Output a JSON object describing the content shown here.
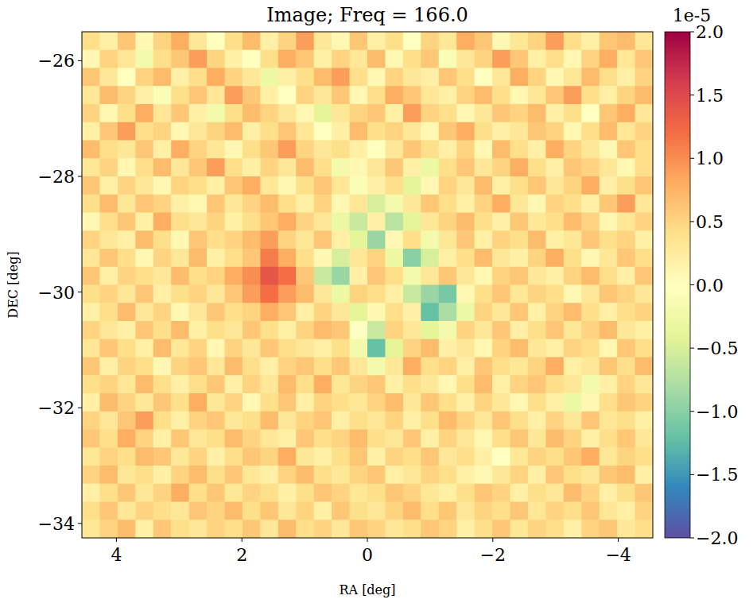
{
  "chart_data": {
    "type": "heatmap",
    "title": "Image; Freq = 166.0",
    "x_label": "RA [deg]",
    "y_label": "DEC [deg]",
    "xlim": [
      4.55,
      -4.55
    ],
    "ylim": [
      -34.25,
      -25.5
    ],
    "xticks": [
      4,
      2,
      0,
      {
        "value": -2,
        "label": "−2"
      },
      {
        "value": -4,
        "label": "−4"
      }
    ],
    "yticks": [
      {
        "value": -26,
        "label": "−26"
      },
      {
        "value": -28,
        "label": "−28"
      },
      {
        "value": -30,
        "label": "−30"
      },
      {
        "value": -32,
        "label": "−32"
      },
      {
        "value": -34,
        "label": "−34"
      }
    ],
    "colorbar": {
      "range": [
        -2,
        2
      ],
      "offset_label": "1e-5",
      "ticks": [
        {
          "value": -2,
          "label": "−2.0"
        },
        {
          "value": -1.5,
          "label": "−1.5"
        },
        {
          "value": -1,
          "label": "−1.0"
        },
        {
          "value": -0.5,
          "label": "−0.5"
        },
        {
          "value": 0,
          "label": "0.0"
        },
        {
          "value": 0.5,
          "label": "0.5"
        },
        {
          "value": 1,
          "label": "1.0"
        },
        {
          "value": 1.5,
          "label": "1.5"
        },
        {
          "value": 2,
          "label": "2.0"
        }
      ]
    },
    "cells": [
      [
        0.4,
        0.2,
        0.6,
        0.1,
        0.5,
        0.8,
        0.3,
        0.0,
        0.4,
        0.7,
        0.2,
        0.5,
        0.9,
        0.3,
        0.1,
        0.6,
        0.2,
        0.4,
        0.0,
        0.5,
        0.3,
        0.8,
        0.6,
        0.1,
        0.3,
        0.5,
        0.9,
        0.4,
        0.2,
        0.6,
        0.7,
        0.3
      ],
      [
        0.1,
        0.5,
        0.3,
        -0.2,
        0.4,
        0.6,
        0.9,
        0.5,
        0.2,
        0.0,
        0.4,
        0.8,
        0.6,
        0.2,
        0.5,
        0.3,
        0.7,
        0.1,
        0.4,
        0.6,
        -0.1,
        0.3,
        0.5,
        0.9,
        0.6,
        0.2,
        0.4,
        0.1,
        0.5,
        0.8,
        0.3,
        0.6
      ],
      [
        0.6,
        0.3,
        0.0,
        0.5,
        0.7,
        0.2,
        0.4,
        0.8,
        0.5,
        0.3,
        -0.3,
        0.2,
        0.4,
        0.7,
        0.9,
        0.4,
        0.1,
        0.5,
        0.3,
        0.2,
        0.6,
        0.4,
        0.0,
        0.3,
        0.8,
        0.5,
        0.1,
        0.3,
        0.7,
        0.4,
        0.2,
        0.5
      ],
      [
        0.3,
        0.7,
        0.5,
        0.2,
        -0.1,
        0.4,
        0.6,
        0.3,
        0.9,
        0.6,
        0.2,
        0.0,
        0.5,
        0.3,
        0.6,
        0.1,
        0.4,
        0.8,
        0.6,
        0.3,
        0.2,
        0.5,
        0.7,
        0.4,
        0.1,
        0.3,
        0.6,
        0.9,
        0.4,
        0.2,
        0.5,
        0.7
      ],
      [
        0.5,
        0.1,
        0.4,
        0.8,
        0.3,
        0.6,
        0.2,
        -0.2,
        0.4,
        0.7,
        0.5,
        0.3,
        0.1,
        -0.4,
        0.3,
        0.5,
        0.6,
        0.2,
        0.9,
        0.5,
        0.4,
        0.1,
        0.3,
        0.6,
        0.5,
        0.7,
        0.2,
        0.4,
        0.0,
        0.6,
        0.8,
        0.3
      ],
      [
        0.2,
        0.6,
        0.9,
        0.4,
        0.5,
        0.1,
        0.3,
        0.5,
        0.7,
        0.2,
        0.4,
        0.6,
        0.3,
        0.0,
        0.2,
        0.7,
        0.4,
        0.5,
        0.3,
        0.1,
        0.6,
        0.8,
        0.4,
        0.2,
        0.3,
        0.6,
        0.5,
        0.1,
        0.4,
        0.7,
        0.3,
        0.5
      ],
      [
        0.7,
        0.4,
        0.3,
        0.6,
        0.2,
        0.8,
        0.5,
        0.3,
        0.1,
        0.4,
        0.6,
        0.9,
        0.5,
        0.3,
        0.4,
        0.2,
        0.0,
        0.3,
        0.6,
        0.4,
        0.2,
        0.5,
        0.1,
        0.7,
        0.4,
        0.2,
        0.8,
        0.5,
        0.3,
        0.1,
        0.6,
        0.4
      ],
      [
        0.3,
        0.5,
        0.1,
        0.4,
        0.7,
        0.3,
        0.6,
        0.9,
        0.4,
        0.2,
        0.5,
        0.3,
        0.7,
        0.4,
        -0.2,
        0.1,
        0.3,
        0.6,
        0.2,
        -0.3,
        0.4,
        0.6,
        0.3,
        0.5,
        0.8,
        0.4,
        0.2,
        0.6,
        0.5,
        0.3,
        0.1,
        0.4
      ],
      [
        0.6,
        0.2,
        0.5,
        0.3,
        0.1,
        0.5,
        0.4,
        0.2,
        0.6,
        0.8,
        0.3,
        0.1,
        0.4,
        0.6,
        0.3,
        -0.1,
        0.2,
        0.4,
        -0.4,
        0.1,
        0.5,
        0.3,
        0.7,
        0.2,
        0.4,
        0.6,
        0.3,
        0.5,
        0.8,
        0.2,
        0.4,
        0.6
      ],
      [
        0.4,
        0.7,
        0.3,
        0.6,
        0.5,
        0.2,
        0.1,
        0.6,
        0.3,
        0.5,
        0.7,
        0.4,
        0.2,
        0.5,
        0.1,
        0.3,
        -0.5,
        -0.2,
        0.3,
        0.6,
        0.4,
        0.2,
        0.5,
        0.8,
        0.3,
        0.1,
        0.5,
        0.4,
        0.2,
        0.6,
        0.9,
        0.3
      ],
      [
        0.1,
        0.4,
        0.6,
        0.2,
        0.8,
        0.4,
        0.3,
        0.5,
        0.2,
        0.4,
        0.6,
        0.8,
        0.5,
        0.3,
        -0.3,
        -0.6,
        0.2,
        -0.7,
        -0.4,
        0.3,
        0.5,
        0.7,
        0.4,
        0.2,
        0.6,
        0.3,
        0.4,
        0.7,
        0.5,
        0.1,
        0.3,
        0.5
      ],
      [
        0.5,
        0.3,
        0.2,
        0.7,
        0.4,
        0.1,
        0.6,
        0.4,
        0.5,
        0.7,
        0.9,
        0.5,
        0.3,
        0.6,
        0.2,
        -0.4,
        -0.9,
        0.1,
        0.4,
        -0.2,
        0.3,
        0.6,
        0.2,
        0.5,
        0.4,
        0.7,
        0.2,
        0.3,
        0.6,
        0.4,
        0.5,
        0.2
      ],
      [
        0.3,
        0.6,
        0.4,
        0.1,
        0.5,
        0.3,
        0.7,
        0.2,
        0.4,
        0.6,
        1.1,
        0.8,
        0.4,
        0.1,
        -0.5,
        0.3,
        0.5,
        -0.3,
        -1.0,
        -0.5,
        0.2,
        0.4,
        0.7,
        0.3,
        0.2,
        0.5,
        0.8,
        0.4,
        0.1,
        0.3,
        0.6,
        0.4
      ],
      [
        0.6,
        0.2,
        0.5,
        0.4,
        0.3,
        0.7,
        0.4,
        0.5,
        0.8,
        1.0,
        1.4,
        1.2,
        0.6,
        -0.6,
        -0.9,
        0.2,
        0.6,
        0.4,
        -0.2,
        0.3,
        0.6,
        0.3,
        0.1,
        0.5,
        0.6,
        0.3,
        0.2,
        0.5,
        0.7,
        0.4,
        0.2,
        0.6
      ],
      [
        0.4,
        0.5,
        0.3,
        0.6,
        0.2,
        0.4,
        0.5,
        0.3,
        0.6,
        0.9,
        1.2,
        0.9,
        0.7,
        0.3,
        -0.3,
        0.5,
        0.4,
        0.2,
        -0.6,
        -0.9,
        -1.1,
        0.1,
        0.4,
        0.6,
        0.3,
        0.5,
        0.4,
        0.1,
        0.3,
        0.6,
        0.5,
        0.3
      ],
      [
        0.2,
        0.4,
        0.7,
        0.3,
        0.5,
        0.1,
        0.3,
        0.6,
        0.4,
        0.5,
        0.8,
        0.6,
        0.2,
        0.5,
        0.3,
        -0.4,
        0.1,
        0.4,
        0.2,
        -1.2,
        -0.8,
        -0.3,
        0.5,
        0.3,
        0.6,
        0.2,
        0.5,
        0.7,
        0.4,
        0.2,
        0.4,
        0.5
      ],
      [
        0.5,
        0.3,
        0.2,
        0.6,
        0.4,
        0.7,
        0.2,
        0.4,
        0.3,
        0.6,
        0.4,
        0.2,
        0.5,
        0.7,
        0.6,
        0.0,
        -0.6,
        0.5,
        0.3,
        -0.4,
        -0.2,
        0.5,
        0.3,
        0.6,
        0.2,
        0.4,
        0.6,
        0.3,
        0.5,
        0.7,
        0.3,
        0.2
      ],
      [
        0.3,
        0.6,
        0.4,
        0.2,
        0.7,
        0.3,
        0.5,
        0.1,
        0.5,
        0.3,
        0.6,
        0.4,
        0.3,
        0.2,
        0.4,
        -0.2,
        -1.2,
        -0.4,
        0.5,
        0.7,
        0.2,
        0.3,
        0.1,
        0.5,
        0.7,
        0.3,
        0.2,
        0.5,
        0.4,
        0.1,
        0.6,
        0.4
      ],
      [
        0.6,
        0.2,
        0.5,
        0.4,
        0.1,
        0.5,
        0.6,
        0.3,
        0.7,
        0.4,
        0.2,
        0.5,
        0.6,
        0.4,
        0.6,
        0.3,
        -0.2,
        0.3,
        0.8,
        0.4,
        0.5,
        0.2,
        0.6,
        0.4,
        0.3,
        0.5,
        0.8,
        0.2,
        0.3,
        0.6,
        0.4,
        0.7
      ],
      [
        0.4,
        0.5,
        0.3,
        0.7,
        0.4,
        0.2,
        0.4,
        0.6,
        0.2,
        0.5,
        0.3,
        0.7,
        0.4,
        0.8,
        0.3,
        0.5,
        0.6,
        0.2,
        0.4,
        0.3,
        0.1,
        0.4,
        0.7,
        0.2,
        0.5,
        0.6,
        0.4,
        0.3,
        -0.2,
        0.2,
        0.5,
        0.3
      ],
      [
        0.2,
        0.7,
        0.5,
        0.3,
        0.6,
        0.4,
        0.8,
        0.3,
        0.5,
        0.1,
        0.4,
        0.6,
        0.2,
        0.5,
        0.4,
        0.3,
        0.5,
        0.7,
        0.3,
        0.6,
        0.4,
        0.2,
        0.5,
        0.3,
        0.1,
        0.4,
        0.2,
        -0.3,
        0.1,
        0.4,
        0.6,
        0.5
      ],
      [
        0.5,
        0.3,
        0.6,
        0.9,
        0.4,
        0.2,
        0.5,
        0.6,
        0.3,
        0.4,
        0.7,
        0.3,
        0.5,
        0.6,
        0.2,
        0.4,
        0.3,
        0.5,
        0.2,
        0.4,
        0.7,
        0.5,
        0.3,
        0.6,
        0.4,
        0.2,
        0.5,
        0.3,
        0.6,
        0.3,
        0.4,
        0.2
      ],
      [
        0.6,
        0.4,
        0.8,
        0.5,
        0.2,
        0.6,
        0.3,
        0.4,
        0.7,
        0.5,
        0.3,
        0.2,
        0.6,
        0.4,
        0.5,
        0.7,
        0.4,
        0.3,
        0.6,
        0.2,
        0.5,
        0.3,
        0.1,
        0.4,
        0.6,
        0.3,
        0.7,
        0.5,
        0.2,
        0.4,
        0.6,
        0.3
      ],
      [
        0.3,
        0.5,
        0.4,
        0.7,
        0.6,
        0.3,
        0.5,
        0.2,
        0.4,
        0.6,
        0.5,
        0.8,
        0.3,
        0.2,
        0.4,
        0.6,
        0.2,
        0.5,
        0.4,
        0.6,
        0.3,
        0.4,
        0.2,
        0.0,
        0.3,
        0.5,
        0.4,
        0.6,
        0.8,
        0.3,
        0.5,
        0.4
      ],
      [
        0.5,
        0.7,
        0.3,
        0.4,
        0.2,
        0.5,
        0.7,
        0.4,
        0.6,
        0.3,
        0.2,
        0.5,
        0.7,
        0.4,
        0.3,
        0.5,
        0.6,
        0.2,
        0.3,
        0.5,
        0.4,
        0.2,
        0.1,
        0.3,
        0.5,
        0.2,
        0.6,
        0.4,
        0.3,
        0.6,
        0.7,
        0.2
      ],
      [
        0.2,
        0.4,
        0.6,
        0.3,
        0.5,
        0.8,
        0.4,
        0.6,
        0.3,
        0.5,
        0.4,
        0.2,
        0.4,
        0.6,
        0.5,
        0.3,
        0.4,
        0.6,
        0.5,
        0.3,
        0.2,
        0.4,
        0.6,
        0.5,
        0.2,
        0.4,
        0.3,
        0.7,
        0.5,
        0.2,
        0.4,
        0.6
      ],
      [
        0.4,
        0.6,
        0.3,
        0.5,
        0.4,
        0.3,
        0.6,
        0.5,
        0.7,
        0.4,
        0.6,
        0.3,
        0.5,
        0.2,
        0.6,
        0.4,
        0.3,
        0.5,
        0.7,
        0.4,
        0.6,
        0.3,
        0.5,
        0.4,
        0.6,
        0.3,
        0.5,
        0.4,
        0.6,
        0.3,
        0.2,
        0.5
      ],
      [
        0.3,
        0.5,
        0.7,
        0.2,
        0.6,
        0.4,
        0.3,
        0.5,
        0.4,
        0.6,
        0.3,
        0.7,
        0.4,
        0.5,
        0.3,
        0.6,
        0.5,
        0.3,
        0.4,
        0.6,
        0.5,
        0.2,
        0.4,
        0.6,
        0.3,
        0.5,
        0.4,
        0.2,
        0.5,
        0.6,
        0.3,
        0.4
      ]
    ]
  }
}
